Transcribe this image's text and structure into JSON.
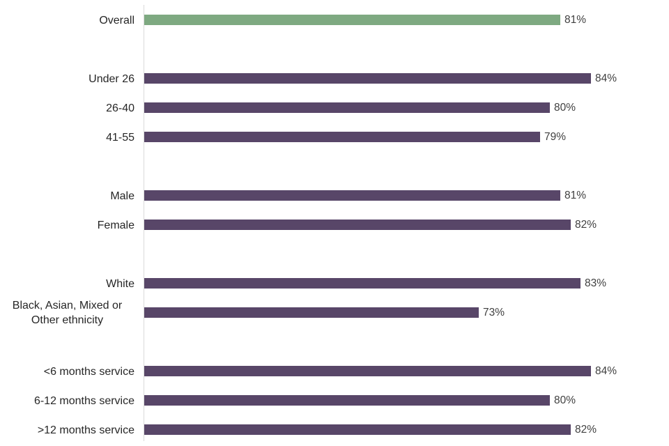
{
  "chart_data": {
    "type": "bar",
    "orientation": "horizontal",
    "title": "",
    "xlabel": "",
    "ylabel": "",
    "categories": [
      "Overall",
      "Under 26",
      "26-40",
      "41-55",
      "Male",
      "Female",
      "White",
      "Black, Asian, Mixed or Other ethnicity",
      "<6 months service",
      "6-12 months service",
      ">12 months service"
    ],
    "values": [
      81,
      84,
      80,
      79,
      81,
      82,
      83,
      73,
      84,
      80,
      82
    ],
    "data_labels": [
      "81%",
      "84%",
      "80%",
      "79%",
      "81%",
      "82%",
      "83%",
      "73%",
      "84%",
      "80%",
      "82%"
    ],
    "groups": [
      [
        "Overall"
      ],
      [
        "Under 26",
        "26-40",
        "41-55"
      ],
      [
        "Male",
        "Female"
      ],
      [
        "White",
        "Black, Asian, Mixed or Other ethnicity"
      ],
      [
        "<6 months service",
        "6-12 months service",
        ">12 months service"
      ]
    ],
    "row_slots": [
      0,
      2,
      3,
      4,
      6,
      7,
      9,
      10,
      12,
      13,
      14
    ],
    "total_slots": 15,
    "xlim": [
      40,
      90
    ],
    "x_axis_visible": false,
    "gridlines": false,
    "legend": "none",
    "data_labels_visible": true,
    "colors": {
      "bar_default": "#584668",
      "bar_highlight": "#7ea981",
      "highlight_index": 0,
      "axis_line": "#d9d9d9",
      "category_text": "#262626",
      "value_text": "#404040",
      "background": "#ffffff"
    }
  }
}
